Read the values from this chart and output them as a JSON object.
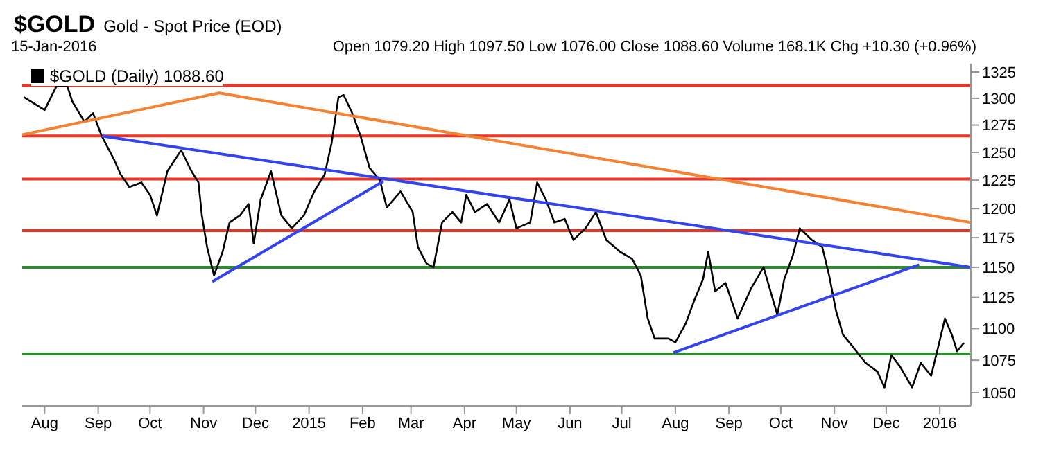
{
  "chart_data": {
    "type": "line",
    "title": "$GOLD",
    "subtitle": "Gold - Spot Price (EOD)",
    "annotations": [
      "15-Jan-2016",
      "Open 1079.20 High 1097.50 Low 1076.00 Close 1088.60 Volume 168.1K Chg +10.30 (+0.96%)"
    ],
    "x": [
      "2014-07-20",
      "2014-08-01",
      "2014-08-08",
      "2014-08-14",
      "2014-08-17",
      "2014-08-24",
      "2014-08-29",
      "2014-09-03",
      "2014-09-10",
      "2014-09-14",
      "2014-09-19",
      "2014-09-26",
      "2014-10-01",
      "2014-10-05",
      "2014-10-11",
      "2014-10-19",
      "2014-10-25",
      "2014-10-29",
      "2014-10-31",
      "2014-11-03",
      "2014-11-07",
      "2014-11-12",
      "2014-11-16",
      "2014-11-22",
      "2014-11-27",
      "2014-11-30",
      "2014-12-04",
      "2014-12-10",
      "2014-12-16",
      "2014-12-22",
      "2014-12-29",
      "2015-01-04",
      "2015-01-10",
      "2015-01-14",
      "2015-01-18",
      "2015-01-21",
      "2015-01-26",
      "2015-01-31",
      "2015-02-05",
      "2015-02-11",
      "2015-02-15",
      "2015-02-23",
      "2015-03-02",
      "2015-03-05",
      "2015-03-10",
      "2015-03-14",
      "2015-03-19",
      "2015-03-25",
      "2015-03-30",
      "2015-04-02",
      "2015-04-07",
      "2015-04-14",
      "2015-04-21",
      "2015-04-27",
      "2015-05-01",
      "2015-05-09",
      "2015-05-13",
      "2015-05-18",
      "2015-05-23",
      "2015-05-29",
      "2015-06-03",
      "2015-06-10",
      "2015-06-16",
      "2015-06-22",
      "2015-06-30",
      "2015-07-07",
      "2015-07-12",
      "2015-07-16",
      "2015-07-20",
      "2015-07-28",
      "2015-08-01",
      "2015-08-07",
      "2015-08-12",
      "2015-08-17",
      "2015-08-20",
      "2015-08-24",
      "2015-08-30",
      "2015-09-06",
      "2015-09-14",
      "2015-09-21",
      "2015-09-29",
      "2015-10-03",
      "2015-10-08",
      "2015-10-12",
      "2015-10-19",
      "2015-10-25",
      "2015-10-29",
      "2015-11-02",
      "2015-11-06",
      "2015-11-12",
      "2015-11-19",
      "2015-11-26",
      "2015-11-30",
      "2015-12-04",
      "2015-12-09",
      "2015-12-16",
      "2015-12-21",
      "2015-12-27",
      "2015-12-31",
      "2016-01-04",
      "2016-01-08",
      "2016-01-11",
      "2016-01-15"
    ],
    "series": [
      {
        "name": "$GOLD (Daily) 1088.60",
        "color": "#000000",
        "values": [
          1301,
          1289,
          1312,
          1312,
          1297,
          1278,
          1286,
          1265,
          1244,
          1230,
          1219,
          1223,
          1212,
          1194,
          1233,
          1252,
          1233,
          1223,
          1194,
          1167,
          1143,
          1163,
          1188,
          1194,
          1204,
          1170,
          1208,
          1233,
          1194,
          1183,
          1194,
          1215,
          1230,
          1258,
          1301,
          1303,
          1286,
          1264,
          1236,
          1225,
          1201,
          1215,
          1197,
          1167,
          1153,
          1150,
          1188,
          1197,
          1188,
          1212,
          1197,
          1204,
          1188,
          1208,
          1183,
          1188,
          1223,
          1208,
          1188,
          1191,
          1173,
          1183,
          1197,
          1173,
          1163,
          1157,
          1143,
          1108,
          1092,
          1092,
          1089,
          1104,
          1123,
          1140,
          1163,
          1130,
          1137,
          1108,
          1133,
          1150,
          1111,
          1140,
          1160,
          1183,
          1173,
          1167,
          1143,
          1114,
          1095,
          1085,
          1073,
          1066,
          1054,
          1079,
          1070,
          1054,
          1073,
          1063,
          1085,
          1108,
          1095,
          1082,
          1088.6
        ]
      },
      {
        "type": "line",
        "color": "#f58231",
        "x": [
          "2014-07-19",
          "2014-11-10",
          "2016-01-19"
        ],
        "values": [
          1266,
          1305,
          1188
        ]
      },
      {
        "type": "line",
        "color": "#3344ee",
        "x": [
          "2014-09-03",
          "2016-01-19"
        ],
        "values": [
          1265,
          1150
        ]
      },
      {
        "type": "line",
        "color": "#3344ee",
        "x": [
          "2014-11-06",
          "2015-02-13"
        ],
        "values": [
          1138,
          1224
        ]
      },
      {
        "type": "line",
        "color": "#3344ee",
        "x": [
          "2015-07-31",
          "2015-12-20"
        ],
        "values": [
          1081,
          1152
        ]
      }
    ],
    "ref_lines": [
      {
        "axis": "y",
        "value": 1312,
        "color": "#ee3322"
      },
      {
        "axis": "y",
        "value": 1265,
        "color": "#ee3322"
      },
      {
        "axis": "y",
        "value": 1226,
        "color": "#ee3322"
      },
      {
        "axis": "y",
        "value": 1181,
        "color": "#ee3322"
      },
      {
        "axis": "y",
        "value": 1150,
        "color": "#2e8b2e"
      },
      {
        "axis": "y",
        "value": 1080,
        "color": "#2e8b2e"
      }
    ],
    "xlim": [
      "2014-07-19",
      "2016-01-19"
    ],
    "xticks": [
      {
        "value": "2014-08-01",
        "label": "Aug"
      },
      {
        "value": "2014-09-01",
        "label": "Sep"
      },
      {
        "value": "2014-10-01",
        "label": "Oct"
      },
      {
        "value": "2014-11-01",
        "label": "Nov"
      },
      {
        "value": "2014-12-01",
        "label": "Dec"
      },
      {
        "value": "2015-01-01",
        "label": "2015"
      },
      {
        "value": "2015-02-01",
        "label": "Feb"
      },
      {
        "value": "2015-03-01",
        "label": "Mar"
      },
      {
        "value": "2015-04-01",
        "label": "Apr"
      },
      {
        "value": "2015-05-01",
        "label": "May"
      },
      {
        "value": "2015-06-01",
        "label": "Jun"
      },
      {
        "value": "2015-07-01",
        "label": "Jul"
      },
      {
        "value": "2015-08-01",
        "label": "Aug"
      },
      {
        "value": "2015-09-01",
        "label": "Sep"
      },
      {
        "value": "2015-10-01",
        "label": "Oct"
      },
      {
        "value": "2015-11-01",
        "label": "Nov"
      },
      {
        "value": "2015-12-01",
        "label": "Dec"
      },
      {
        "value": "2016-01-01",
        "label": "2016"
      }
    ],
    "ylim": [
      1040,
      1333
    ],
    "yticks": [
      1050,
      1075,
      1100,
      1125,
      1150,
      1175,
      1200,
      1225,
      1250,
      1275,
      1300,
      1325
    ],
    "log": true,
    "grid": false,
    "legend": "top left",
    "marker": "none",
    "line_style": "solid"
  }
}
